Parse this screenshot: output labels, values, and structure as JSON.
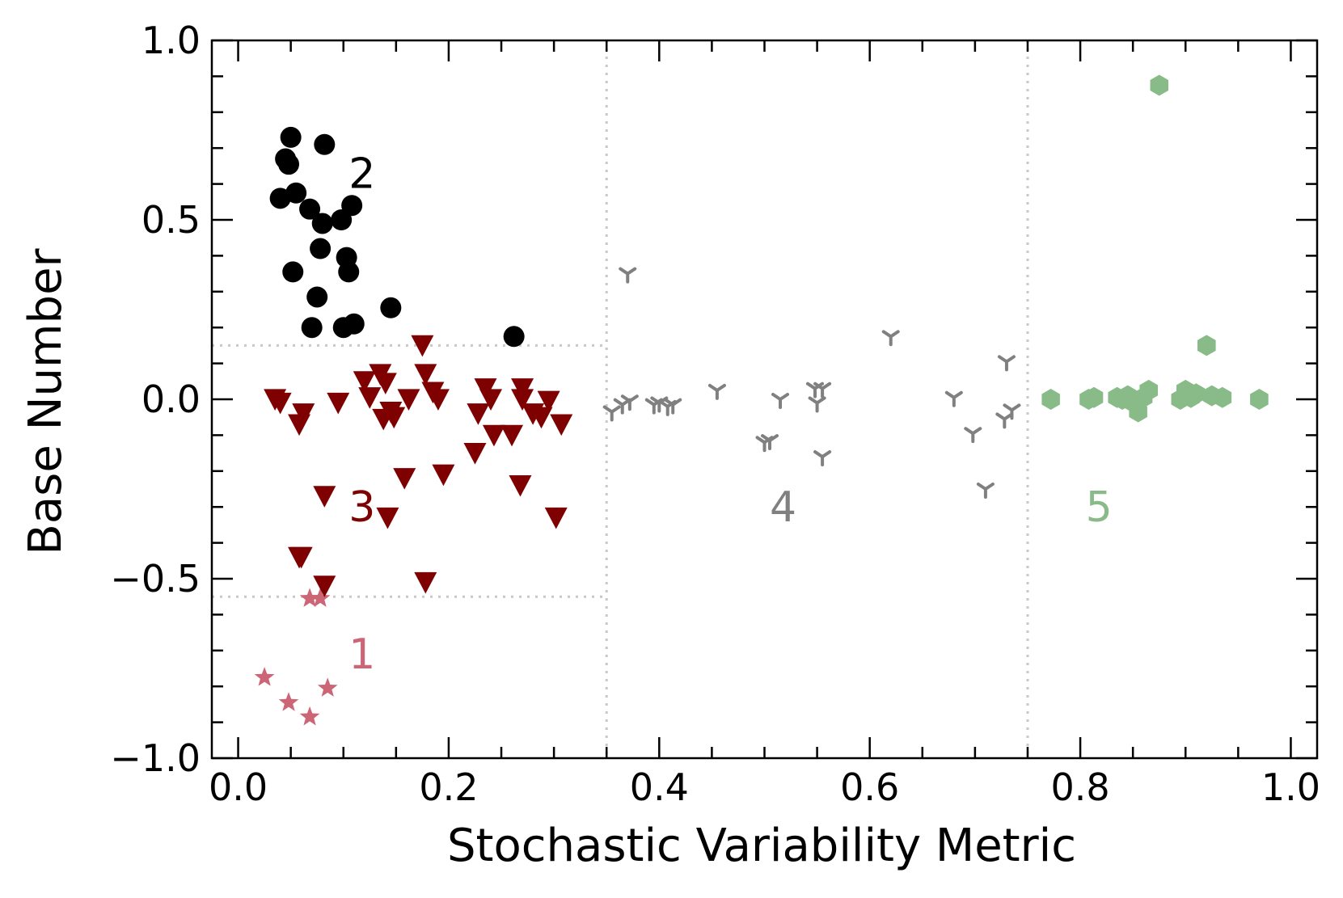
{
  "chart_data": {
    "type": "scatter",
    "xlabel": "Stochastic Variability Metric",
    "ylabel": "Base Number",
    "xlim": [
      -0.025,
      1.025
    ],
    "ylim": [
      -1.0,
      1.0
    ],
    "xticks": [
      0.0,
      0.2,
      0.4,
      0.6,
      0.8,
      1.0
    ],
    "xtick_labels": [
      "0.0",
      "0.2",
      "0.4",
      "0.6",
      "0.8",
      "1.0"
    ],
    "yticks": [
      -1.0,
      -0.5,
      0.0,
      0.5,
      1.0
    ],
    "ytick_labels": [
      "−1.0",
      "−0.5",
      "0.0",
      "0.5",
      "1.0"
    ],
    "grid": false,
    "divider_lines": {
      "vertical_x": [
        0.35,
        0.75
      ],
      "horizontal_y": [
        0.15,
        -0.55
      ],
      "horizontal_x_range": [
        -0.025,
        0.35
      ]
    },
    "series": [
      {
        "name": "1",
        "marker": "star",
        "color": "#cc6677",
        "label_pos": {
          "x": 0.105,
          "y": -0.71
        },
        "x": [
          0.025,
          0.048,
          0.068,
          0.068,
          0.078,
          0.085
        ],
        "y": [
          -0.775,
          -0.845,
          -0.885,
          -0.555,
          -0.555,
          -0.805
        ]
      },
      {
        "name": "2",
        "marker": "circle",
        "color": "#000000",
        "label_pos": {
          "x": 0.105,
          "y": 0.63
        },
        "x": [
          0.05,
          0.045,
          0.048,
          0.082,
          0.04,
          0.055,
          0.068,
          0.08,
          0.098,
          0.108,
          0.103,
          0.078,
          0.105,
          0.052,
          0.075,
          0.07,
          0.1,
          0.11,
          0.145,
          0.262
        ],
        "y": [
          0.73,
          0.67,
          0.655,
          0.71,
          0.56,
          0.575,
          0.53,
          0.49,
          0.5,
          0.54,
          0.395,
          0.42,
          0.355,
          0.355,
          0.285,
          0.2,
          0.2,
          0.21,
          0.255,
          0.175
        ]
      },
      {
        "name": "3",
        "marker": "triangle-down",
        "color": "#7f0000",
        "label_pos": {
          "x": 0.105,
          "y": -0.3
        },
        "x": [
          0.035,
          0.04,
          0.058,
          0.062,
          0.095,
          0.12,
          0.125,
          0.135,
          0.14,
          0.148,
          0.145,
          0.138,
          0.175,
          0.178,
          0.185,
          0.162,
          0.19,
          0.235,
          0.24,
          0.228,
          0.26,
          0.27,
          0.27,
          0.28,
          0.288,
          0.295,
          0.307,
          0.06,
          0.082,
          0.142,
          0.158,
          0.195,
          0.225,
          0.243,
          0.268,
          0.302,
          0.058,
          0.082,
          0.178
        ],
        "y": [
          0.0,
          -0.01,
          -0.07,
          -0.04,
          -0.01,
          0.05,
          0.005,
          0.07,
          0.045,
          -0.05,
          -0.035,
          -0.055,
          0.15,
          0.07,
          0.02,
          0.0,
          0.0,
          0.03,
          0.0,
          -0.04,
          -0.1,
          0.0,
          0.03,
          -0.04,
          -0.05,
          -0.005,
          -0.07,
          -0.44,
          -0.27,
          -0.33,
          -0.22,
          -0.21,
          -0.15,
          -0.1,
          -0.24,
          -0.33,
          -0.44,
          -0.52,
          -0.51
        ]
      },
      {
        "name": "4",
        "marker": "tri-down",
        "color": "#808080",
        "label_pos": {
          "x": 0.505,
          "y": -0.3
        },
        "x": [
          0.37,
          0.365,
          0.372,
          0.355,
          0.395,
          0.4,
          0.408,
          0.413,
          0.455,
          0.5,
          0.505,
          0.515,
          0.548,
          0.555,
          0.55,
          0.555,
          0.62,
          0.68,
          0.698,
          0.71,
          0.73,
          0.735,
          0.728
        ],
        "y": [
          0.35,
          -0.015,
          -0.005,
          -0.035,
          -0.015,
          -0.01,
          -0.02,
          -0.015,
          0.025,
          -0.12,
          -0.115,
          0.0,
          0.03,
          0.03,
          -0.01,
          -0.16,
          0.175,
          0.005,
          -0.095,
          -0.25,
          0.105,
          -0.03,
          -0.055
        ]
      },
      {
        "name": "5",
        "marker": "hexagon",
        "color": "#88bb88",
        "label_pos": {
          "x": 0.805,
          "y": -0.3
        },
        "x": [
          0.772,
          0.808,
          0.813,
          0.835,
          0.84,
          0.845,
          0.848,
          0.855,
          0.86,
          0.865,
          0.875,
          0.895,
          0.9,
          0.905,
          0.91,
          0.92,
          0.925,
          0.935,
          0.97
        ],
        "y": [
          0.0,
          0.0,
          0.005,
          0.005,
          0.0,
          0.01,
          -0.005,
          -0.035,
          0.005,
          0.025,
          0.875,
          0.0,
          0.025,
          0.005,
          0.015,
          0.15,
          0.01,
          0.005,
          0.0
        ]
      }
    ]
  }
}
